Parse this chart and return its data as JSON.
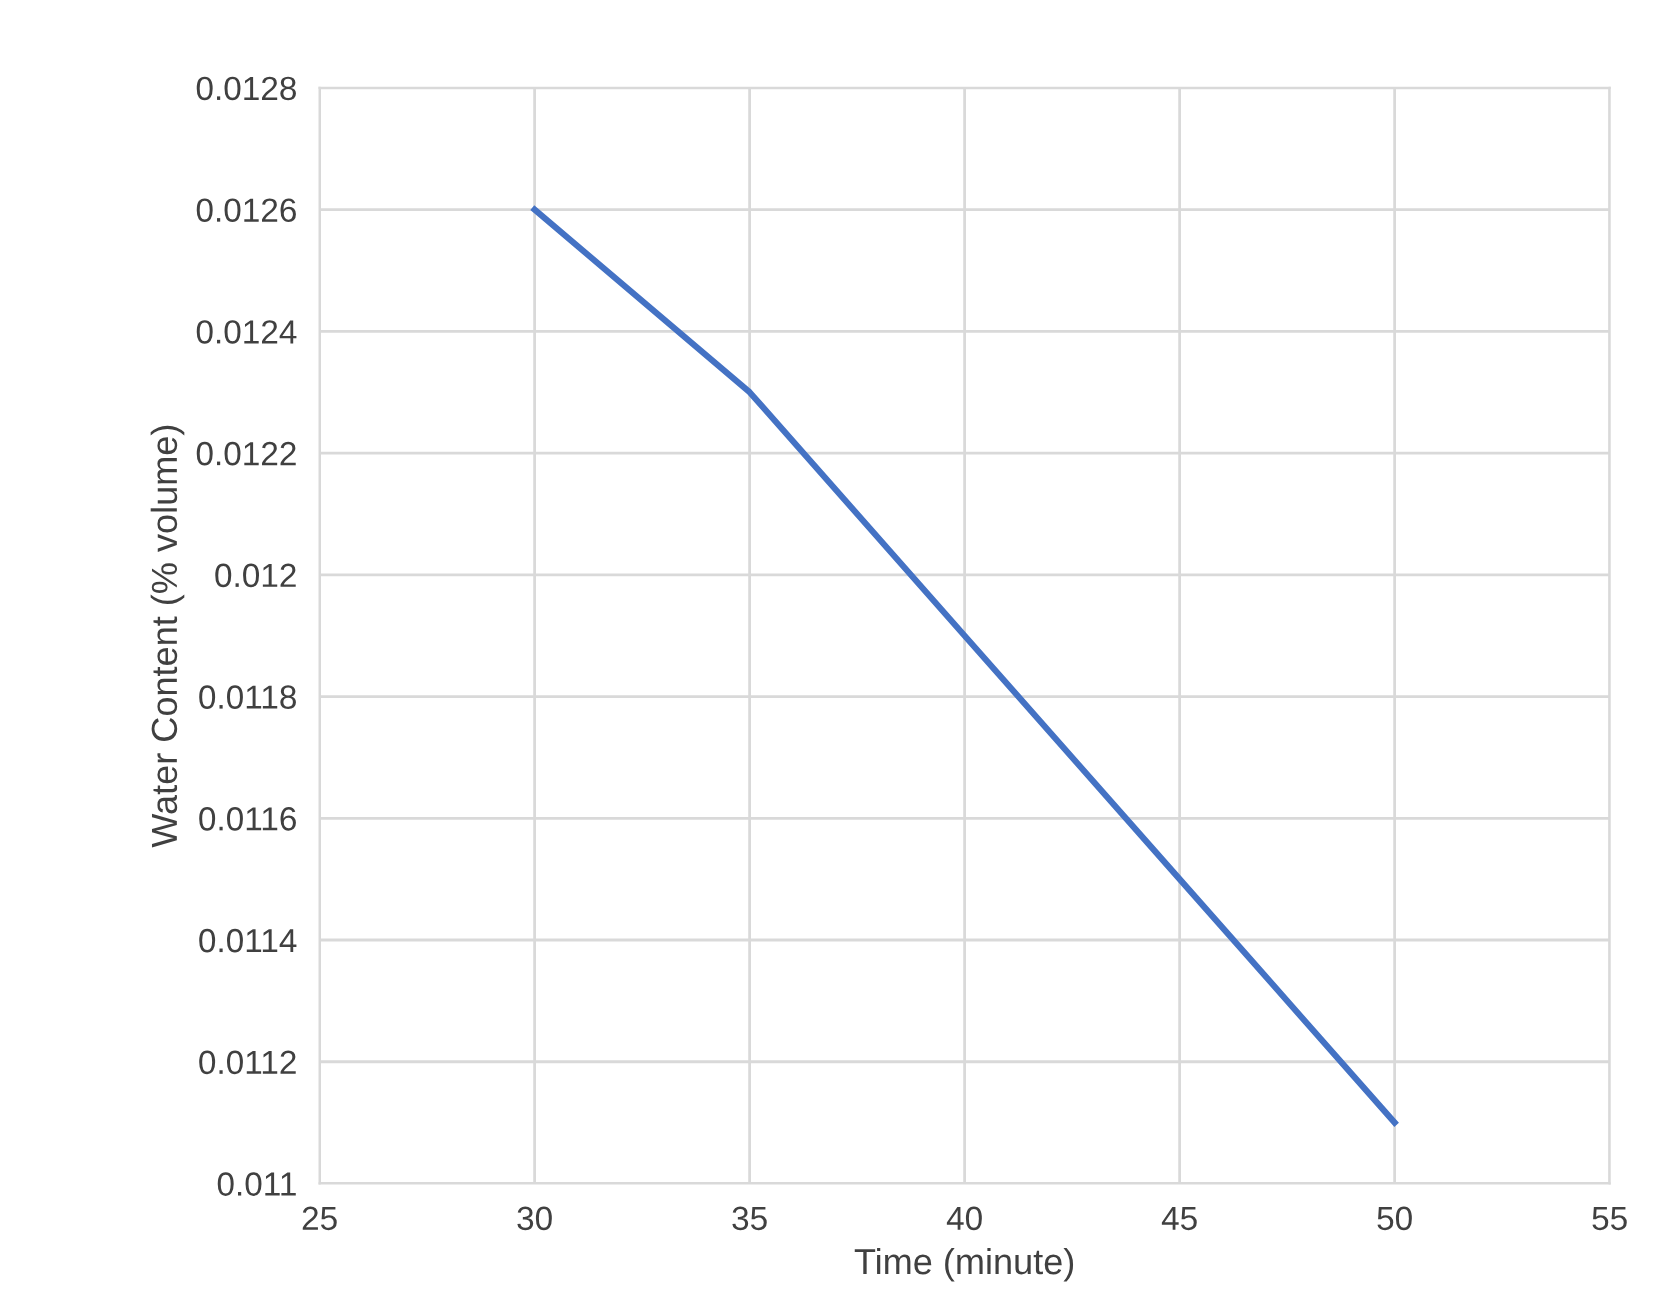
{
  "chart_data": {
    "type": "line",
    "xlabel": "Time (minute)",
    "ylabel": "Water Content (% volume)",
    "x": [
      30,
      35,
      40,
      45,
      50
    ],
    "series": [
      {
        "color": "#4472c4",
        "values": [
          0.0126,
          0.0123,
          0.0119,
          0.0115,
          0.0111
        ]
      }
    ],
    "xlim": [
      25,
      55
    ],
    "xticks": [
      25,
      30,
      35,
      40,
      45,
      50,
      55
    ],
    "ylim": [
      0.011,
      0.0128
    ],
    "yticks": [
      0.011,
      0.0112,
      0.0114,
      0.0116,
      0.0118,
      0.012,
      0.0122,
      0.0124,
      0.0126,
      0.0128
    ],
    "grid": true,
    "legend": false
  }
}
